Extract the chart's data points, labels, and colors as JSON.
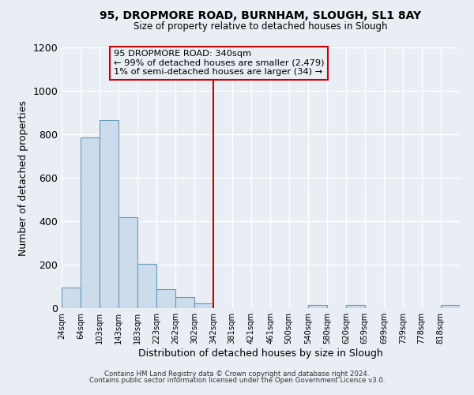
{
  "title": "95, DROPMORE ROAD, BURNHAM, SLOUGH, SL1 8AY",
  "subtitle": "Size of property relative to detached houses in Slough",
  "xlabel": "Distribution of detached houses by size in Slough",
  "ylabel": "Number of detached properties",
  "bin_labels": [
    "24sqm",
    "64sqm",
    "103sqm",
    "143sqm",
    "183sqm",
    "223sqm",
    "262sqm",
    "302sqm",
    "342sqm",
    "381sqm",
    "421sqm",
    "461sqm",
    "500sqm",
    "540sqm",
    "580sqm",
    "620sqm",
    "659sqm",
    "699sqm",
    "739sqm",
    "778sqm",
    "818sqm"
  ],
  "bin_edges": [
    24,
    64,
    103,
    143,
    183,
    223,
    262,
    302,
    342,
    381,
    421,
    461,
    500,
    540,
    580,
    620,
    659,
    699,
    739,
    778,
    818
  ],
  "bar_heights": [
    95,
    785,
    865,
    420,
    205,
    87,
    52,
    22,
    0,
    0,
    0,
    0,
    0,
    14,
    0,
    14,
    0,
    0,
    0,
    0,
    14
  ],
  "bar_color": "#cddcec",
  "bar_edgecolor": "#6699bb",
  "vline_x": 342,
  "vline_color": "#cc0000",
  "ylim": [
    0,
    1200
  ],
  "yticks": [
    0,
    200,
    400,
    600,
    800,
    1000,
    1200
  ],
  "annotation_title": "95 DROPMORE ROAD: 340sqm",
  "annotation_line1": "← 99% of detached houses are smaller (2,479)",
  "annotation_line2": "1% of semi-detached houses are larger (34) →",
  "annotation_box_edgecolor": "#cc0000",
  "footer1": "Contains HM Land Registry data © Crown copyright and database right 2024.",
  "footer2": "Contains public sector information licensed under the Open Government Licence v3.0.",
  "background_color": "#e8eef4",
  "grid_color": "#d0d8e0"
}
